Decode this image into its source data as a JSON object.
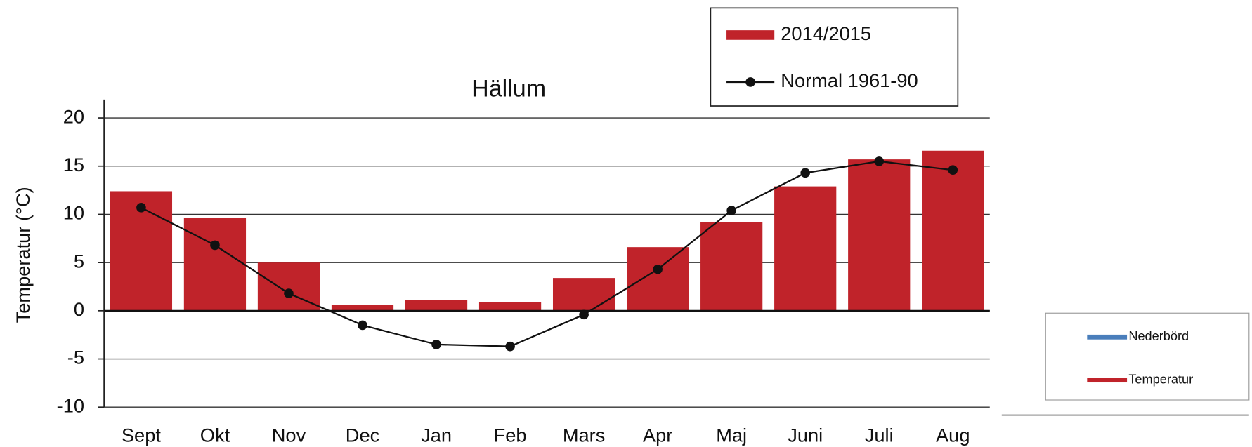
{
  "chart_data": {
    "type": "bar",
    "title": "Hällum",
    "y_label": "Temperatur (°C)",
    "categories": [
      "Sept",
      "Okt",
      "Nov",
      "Dec",
      "Jan",
      "Feb",
      "Mars",
      "Apr",
      "Maj",
      "Juni",
      "Juli",
      "Aug"
    ],
    "series": [
      {
        "name": "2014/2015",
        "type": "bar",
        "color": "#c0232a",
        "values": [
          12.4,
          9.6,
          5.0,
          0.6,
          1.1,
          0.9,
          3.4,
          6.6,
          9.2,
          12.9,
          15.7,
          16.6
        ]
      },
      {
        "name": "Normal 1961-90",
        "type": "line",
        "color": "#111111",
        "values": [
          10.7,
          6.8,
          1.8,
          -1.5,
          -3.5,
          -3.7,
          -0.4,
          4.3,
          10.4,
          14.3,
          15.5,
          14.6
        ]
      }
    ],
    "ylim": [
      -10,
      20
    ],
    "yticks": [
      -10,
      -5,
      0,
      5,
      10,
      15,
      20
    ],
    "grid": true
  },
  "extra_legend": [
    {
      "name": "Nederbörd",
      "color": "#4a7ebb"
    },
    {
      "name": "Temperatur",
      "color": "#c0232a"
    }
  ]
}
